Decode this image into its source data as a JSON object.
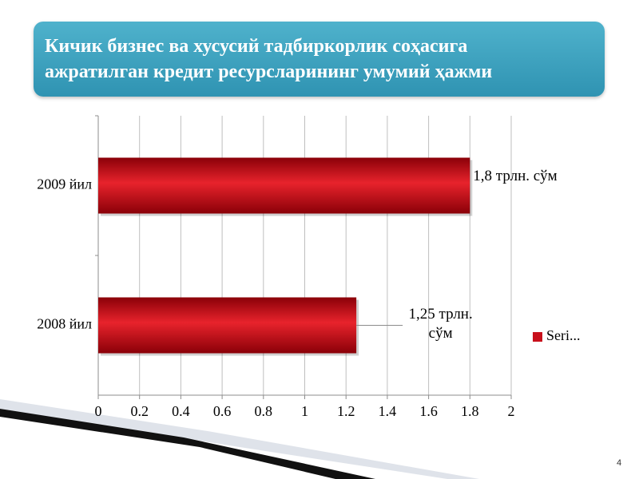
{
  "page_number": "4",
  "chart_data": {
    "type": "bar",
    "orientation": "horizontal",
    "title": "Кичик бизнес ва хусусий тадбиркорлик соҳасига\nажратилган кредит ресурсларининг умумий ҳажми",
    "categories": [
      "2008 йил",
      "2009 йил"
    ],
    "series": [
      {
        "name": "Seri...",
        "color": "#c8101c",
        "values": [
          1.25,
          1.8
        ],
        "value_labels": [
          "1,25 трлн. сўм",
          "1,8 трлн. сўм"
        ]
      }
    ],
    "xlim": [
      0,
      2
    ],
    "xticks": [
      0,
      0.2,
      0.4,
      0.6,
      0.8,
      1,
      1.2,
      1.4,
      1.6,
      1.8,
      2
    ],
    "grid": true,
    "legend": "right"
  }
}
